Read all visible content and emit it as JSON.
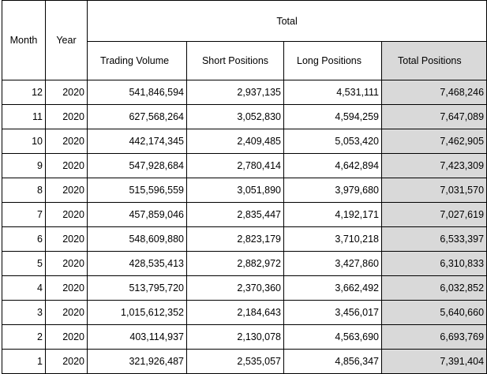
{
  "headers": {
    "month": "Month",
    "year": "Year",
    "group": "Total",
    "trading_volume": "Trading Volume",
    "short_positions": "Short Positions",
    "long_positions": "Long Positions",
    "total_positions": "Total Positions"
  },
  "rows": [
    {
      "month": "12",
      "year": "2020",
      "trading_volume": "541,846,594",
      "short": "2,937,135",
      "long": "4,531,111",
      "total": "7,468,246"
    },
    {
      "month": "11",
      "year": "2020",
      "trading_volume": "627,568,264",
      "short": "3,052,830",
      "long": "4,594,259",
      "total": "7,647,089"
    },
    {
      "month": "10",
      "year": "2020",
      "trading_volume": "442,174,345",
      "short": "2,409,485",
      "long": "5,053,420",
      "total": "7,462,905"
    },
    {
      "month": "9",
      "year": "2020",
      "trading_volume": "547,928,684",
      "short": "2,780,414",
      "long": "4,642,894",
      "total": "7,423,309"
    },
    {
      "month": "8",
      "year": "2020",
      "trading_volume": "515,596,559",
      "short": "3,051,890",
      "long": "3,979,680",
      "total": "7,031,570"
    },
    {
      "month": "7",
      "year": "2020",
      "trading_volume": "457,859,046",
      "short": "2,835,447",
      "long": "4,192,171",
      "total": "7,027,619"
    },
    {
      "month": "6",
      "year": "2020",
      "trading_volume": "548,609,880",
      "short": "2,823,179",
      "long": "3,710,218",
      "total": "6,533,397"
    },
    {
      "month": "5",
      "year": "2020",
      "trading_volume": "428,535,413",
      "short": "2,882,972",
      "long": "3,427,860",
      "total": "6,310,833"
    },
    {
      "month": "4",
      "year": "2020",
      "trading_volume": "513,795,720",
      "short": "2,370,360",
      "long": "3,662,492",
      "total": "6,032,852"
    },
    {
      "month": "3",
      "year": "2020",
      "trading_volume": "1,015,612,352",
      "short": "2,184,643",
      "long": "3,456,017",
      "total": "5,640,660"
    },
    {
      "month": "2",
      "year": "2020",
      "trading_volume": "403,114,937",
      "short": "2,130,078",
      "long": "4,563,690",
      "total": "6,693,769"
    },
    {
      "month": "1",
      "year": "2020",
      "trading_volume": "321,926,487",
      "short": "2,535,057",
      "long": "4,856,347",
      "total": "7,391,404"
    }
  ]
}
